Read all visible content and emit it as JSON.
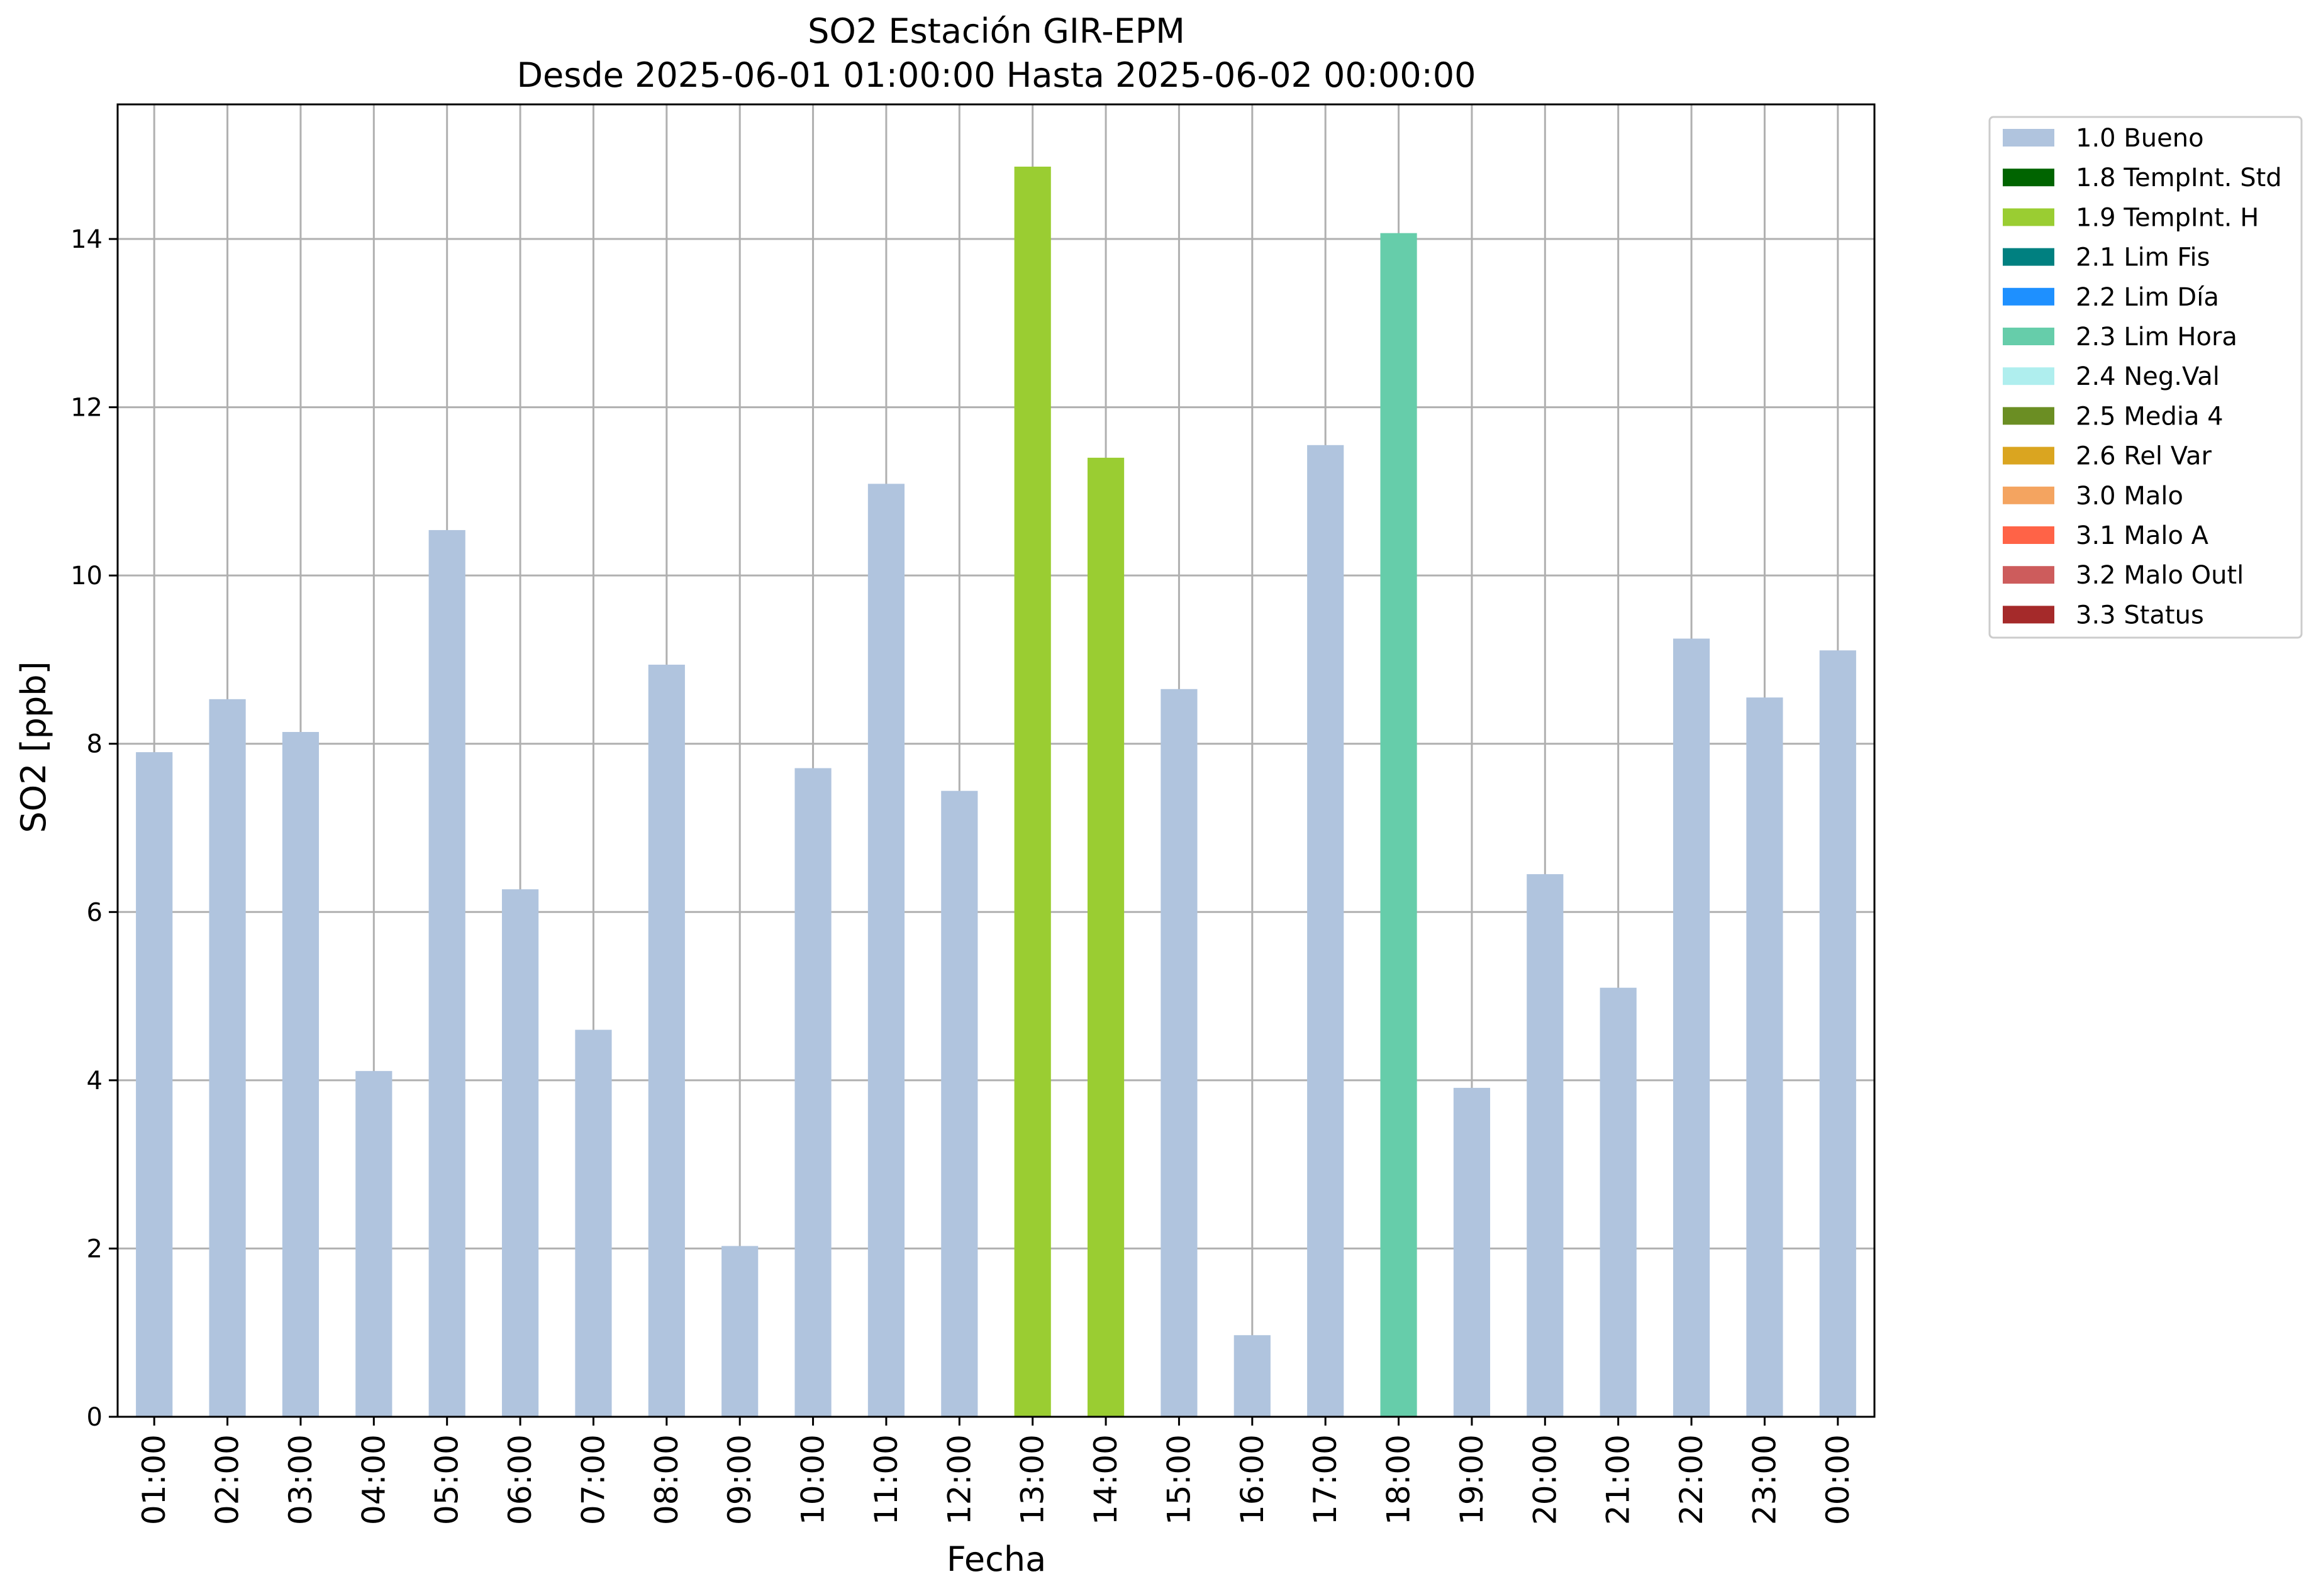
{
  "chart_data": {
    "type": "bar",
    "title": "SO2 Estación GIR-EPM",
    "subtitle": "Desde 2025-06-01 01:00:00 Hasta 2025-06-02 00:00:00",
    "xlabel": "Fecha",
    "ylabel": "SO2 [ppb]",
    "ylim": [
      0,
      15.6
    ],
    "yticks": [
      0,
      2,
      4,
      6,
      8,
      10,
      12,
      14
    ],
    "grid": true,
    "legend_position": "outside-right",
    "categories": [
      "01:00",
      "02:00",
      "03:00",
      "04:00",
      "05:00",
      "06:00",
      "07:00",
      "08:00",
      "09:00",
      "10:00",
      "11:00",
      "12:00",
      "13:00",
      "14:00",
      "15:00",
      "16:00",
      "17:00",
      "18:00",
      "19:00",
      "20:00",
      "21:00",
      "22:00",
      "23:00",
      "00:00"
    ],
    "values": [
      7.9,
      8.53,
      8.14,
      4.11,
      10.54,
      6.27,
      4.6,
      8.94,
      2.03,
      7.71,
      11.09,
      7.44,
      14.86,
      11.4,
      8.65,
      0.97,
      11.55,
      14.07,
      3.91,
      6.45,
      5.1,
      9.25,
      8.55,
      9.11
    ],
    "flags": [
      "1.0 Bueno",
      "1.0 Bueno",
      "1.0 Bueno",
      "1.0 Bueno",
      "1.0 Bueno",
      "1.0 Bueno",
      "1.0 Bueno",
      "1.0 Bueno",
      "1.0 Bueno",
      "1.0 Bueno",
      "1.0 Bueno",
      "1.0 Bueno",
      "1.9 TempInt. H",
      "1.9 TempInt. H",
      "1.0 Bueno",
      "1.0 Bueno",
      "1.0 Bueno",
      "2.3 Lim Hora",
      "1.0 Bueno",
      "1.0 Bueno",
      "1.0 Bueno",
      "1.0 Bueno",
      "1.0 Bueno",
      "1.0 Bueno"
    ],
    "legend": [
      {
        "label": "1.0 Bueno",
        "color": "#b0c4de"
      },
      {
        "label": "1.8 TempInt. Std",
        "color": "#006400"
      },
      {
        "label": "1.9 TempInt. H",
        "color": "#9acd32"
      },
      {
        "label": "2.1 Lim Fis",
        "color": "#008080"
      },
      {
        "label": "2.2 Lim Día",
        "color": "#1e90ff"
      },
      {
        "label": "2.3 Lim Hora",
        "color": "#66cdaa"
      },
      {
        "label": "2.4 Neg.Val",
        "color": "#afeeee"
      },
      {
        "label": "2.5 Media 4",
        "color": "#6b8e23"
      },
      {
        "label": "2.6 Rel Var",
        "color": "#daa520"
      },
      {
        "label": "3.0 Malo",
        "color": "#f4a460"
      },
      {
        "label": "3.1 Malo A",
        "color": "#ff6347"
      },
      {
        "label": "3.2 Malo Outl",
        "color": "#cd5c5c"
      },
      {
        "label": "3.3 Status",
        "color": "#a52a2a"
      }
    ]
  }
}
